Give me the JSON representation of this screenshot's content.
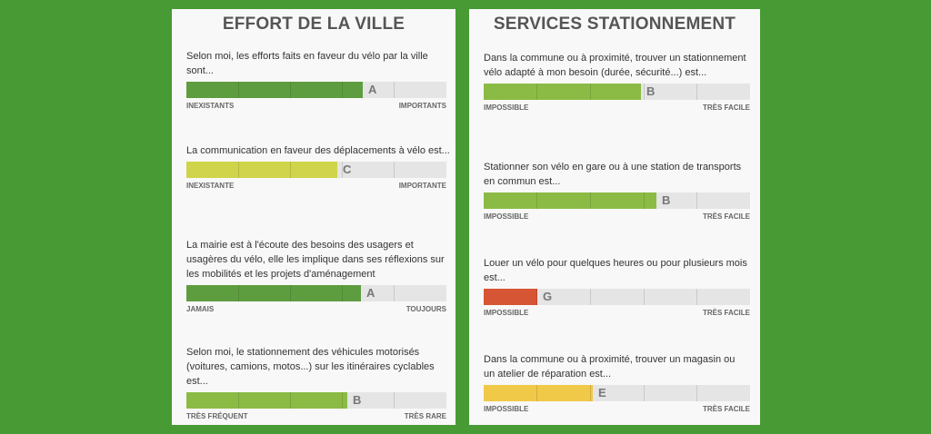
{
  "colors": {
    "background": "#489a34",
    "panel": "#f8f8f8",
    "track": "#e5e5e5",
    "grade_A": "#5e9d3f",
    "grade_B": "#8bbb45",
    "grade_C": "#cfd44a",
    "grade_E": "#f0c948",
    "grade_G": "#d65534"
  },
  "left": {
    "title": "EFFORT DE LA VILLE",
    "questions": [
      {
        "text": "Selon moi, les efforts faits en faveur du vélo par la ville sont...",
        "grade": "A",
        "fill": 0.68,
        "color": "#5e9d3f",
        "low": "INEXISTANTS",
        "high": "IMPORTANTS"
      },
      {
        "text": "La communication en faveur des déplacements à vélo est...",
        "grade": "C",
        "fill": 0.58,
        "color": "#cfd44a",
        "low": "INEXISTANTE",
        "high": "IMPORTANTE"
      },
      {
        "text": "La mairie est à l'écoute des besoins des usagers et usagères du vélo, elle les implique dans ses réflexions sur les mobilités et les projets d'aménagement",
        "grade": "A",
        "fill": 0.67,
        "color": "#5e9d3f",
        "low": "JAMAIS",
        "high": "TOUJOURS"
      },
      {
        "text": "Selon moi, le stationnement des véhicules motorisés (voitures, camions, motos...) sur les itinéraires cyclables est...",
        "grade": "B",
        "fill": 0.62,
        "color": "#8bbb45",
        "low": "TRÈS FRÉQUENT",
        "high": "TRÈS RARE"
      }
    ]
  },
  "right": {
    "title": "SERVICES STATIONNEMENT",
    "questions": [
      {
        "text": "Dans la commune ou à proximité, trouver un stationnement vélo adapté à mon besoin (durée, sécurité...) est...",
        "grade": "B",
        "fill": 0.59,
        "color": "#8bbb45",
        "low": "IMPOSSIBLE",
        "high": "TRÈS FACILE"
      },
      {
        "text": "Stationner son vélo en gare ou à une station de transports en commun est...",
        "grade": "B",
        "fill": 0.65,
        "color": "#8bbb45",
        "low": "IMPOSSIBLE",
        "high": "TRÈS FACILE"
      },
      {
        "text": "Louer un vélo pour quelques heures ou pour plusieurs mois est...",
        "grade": "G",
        "fill": 0.2,
        "color": "#d65534",
        "low": "IMPOSSIBLE",
        "high": "TRÈS FACILE"
      },
      {
        "text": "Dans la commune ou à proximité, trouver un magasin ou un atelier de réparation est...",
        "grade": "E",
        "fill": 0.41,
        "color": "#f0c948",
        "low": "IMPOSSIBLE",
        "high": "TRÈS FACILE"
      }
    ]
  }
}
